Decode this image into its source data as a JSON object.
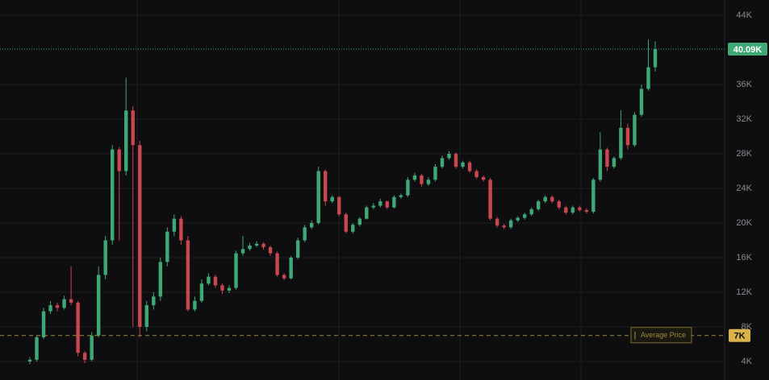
{
  "chart_data": {
    "type": "candlestick",
    "up_color": "#3fa876",
    "down_color": "#c9474f",
    "ylim": [
      1860,
      45770
    ],
    "yticks": [
      {
        "value": 4000,
        "label": "4K"
      },
      {
        "value": 8000,
        "label": "8K"
      },
      {
        "value": 12000,
        "label": "12K"
      },
      {
        "value": 16000,
        "label": "16K"
      },
      {
        "value": 20000,
        "label": "20K"
      },
      {
        "value": 24000,
        "label": "24K"
      },
      {
        "value": 28000,
        "label": "28K"
      },
      {
        "value": 32000,
        "label": "32K"
      },
      {
        "value": 36000,
        "label": "36K"
      },
      {
        "value": 44000,
        "label": "44K"
      }
    ],
    "grid": true,
    "current_price": {
      "value": 40090,
      "label": "40.09K"
    },
    "average_price": {
      "name": "Average Price",
      "value": 7000,
      "label": "7K"
    },
    "open": [
      4000,
      4200,
      6800,
      9800,
      10500,
      10200,
      11200,
      10800,
      5000,
      4200,
      7000,
      14000,
      18000,
      28500,
      26000,
      33000,
      29000,
      8000,
      10500,
      11500,
      15500,
      19000,
      20500,
      18000,
      10000,
      11000,
      13000,
      13800,
      12800,
      12200,
      12500,
      16500,
      17000,
      17400,
      17600,
      17200,
      16500,
      14000,
      13600,
      16000,
      18000,
      19500,
      20000,
      26000,
      22500,
      23000,
      21000,
      19000,
      19800,
      20500,
      21800,
      22000,
      22500,
      21800,
      23000,
      23200,
      25000,
      25500,
      24500,
      25000,
      26500,
      27500,
      28000,
      26500,
      27000,
      26000,
      25300,
      25000,
      20500,
      19700,
      19500,
      20300,
      20600,
      21000,
      21600,
      22500,
      23000,
      22500,
      21800,
      21200,
      21800,
      21500,
      21300,
      25000,
      28500,
      26500,
      27500,
      31000,
      29000,
      32500,
      35500,
      38000
    ],
    "high": [
      4500,
      7000,
      10200,
      11000,
      10800,
      11600,
      15000,
      11000,
      5200,
      7400,
      15000,
      18500,
      29000,
      28800,
      36800,
      33500,
      29500,
      11000,
      12000,
      16000,
      19500,
      21000,
      20800,
      18500,
      11500,
      13500,
      14200,
      14000,
      13000,
      12800,
      16800,
      18500,
      17700,
      17900,
      17800,
      17400,
      16700,
      14200,
      16200,
      18300,
      19800,
      20300,
      26500,
      26200,
      23200,
      23100,
      21200,
      20000,
      20700,
      22000,
      22300,
      22800,
      22600,
      23200,
      23400,
      25300,
      25800,
      25700,
      25300,
      26800,
      27800,
      28300,
      28200,
      27200,
      27200,
      26200,
      25500,
      25200,
      20700,
      19900,
      20500,
      20800,
      21200,
      21800,
      22700,
      23200,
      23200,
      22700,
      22000,
      22000,
      22000,
      21700,
      25200,
      30500,
      28700,
      27700,
      33000,
      31500,
      32800,
      36000,
      41200,
      41000
    ],
    "low": [
      3700,
      4000,
      6600,
      9500,
      9800,
      10000,
      10500,
      4600,
      3800,
      4000,
      6800,
      13500,
      17500,
      18000,
      25500,
      8000,
      6800,
      7500,
      10000,
      11000,
      15000,
      18500,
      17500,
      9800,
      9800,
      10800,
      12800,
      12500,
      11800,
      11900,
      12300,
      16200,
      16800,
      17200,
      16900,
      16200,
      13800,
      13400,
      13500,
      15800,
      17800,
      19300,
      19800,
      22000,
      22300,
      20800,
      18800,
      18800,
      19600,
      20400,
      21600,
      21800,
      21600,
      21700,
      22800,
      23000,
      24800,
      24200,
      24300,
      24800,
      26300,
      27300,
      26300,
      26300,
      25800,
      25100,
      24800,
      20300,
      19500,
      19300,
      19300,
      20100,
      20400,
      20800,
      21400,
      22300,
      22300,
      21600,
      21000,
      21000,
      21300,
      21100,
      21100,
      24800,
      26000,
      26300,
      27300,
      28500,
      28800,
      32300,
      35300,
      37500
    ],
    "close": [
      4200,
      6800,
      9800,
      10500,
      10200,
      11200,
      10800,
      5000,
      4200,
      7000,
      14000,
      18000,
      28500,
      26000,
      33000,
      29000,
      8000,
      10500,
      11500,
      15500,
      19000,
      20500,
      18000,
      10000,
      11000,
      13000,
      13800,
      12800,
      12200,
      12500,
      16500,
      17000,
      17400,
      17600,
      17200,
      16500,
      14000,
      13600,
      16000,
      18000,
      19500,
      20000,
      26000,
      22500,
      23000,
      21000,
      19000,
      19800,
      20500,
      21800,
      22000,
      22500,
      21800,
      23000,
      23200,
      25000,
      25500,
      24500,
      25000,
      26500,
      27500,
      28000,
      26500,
      27000,
      26000,
      25300,
      25000,
      20500,
      19700,
      19500,
      20300,
      20600,
      21000,
      21600,
      22500,
      23000,
      22500,
      21800,
      21200,
      21800,
      21500,
      21300,
      25000,
      28500,
      26500,
      27500,
      31000,
      29000,
      32500,
      35500,
      38000,
      40090
    ]
  }
}
